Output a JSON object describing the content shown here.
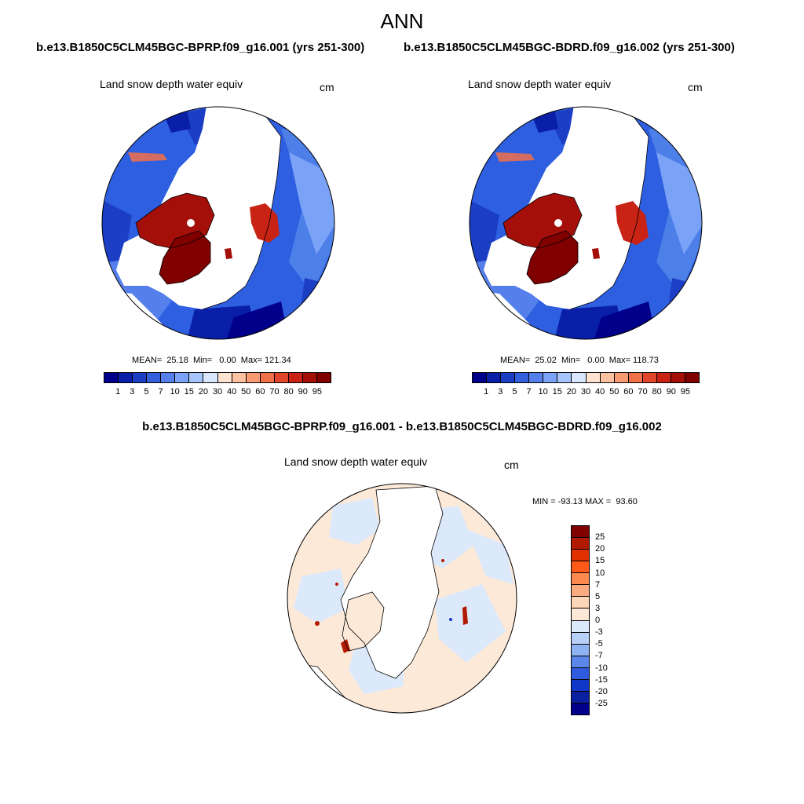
{
  "title": "ANN",
  "panels": [
    {
      "run_title": "b.e13.B1850C5CLM45BGC-BPRP.f09_g16.001 (yrs 251-300)",
      "variable": "Land snow depth water equiv",
      "units": "cm",
      "stats": "MEAN=  25.18  Min=   0.00  Max= 121.34"
    },
    {
      "run_title": "b.e13.B1850C5CLM45BGC-BDRD.f09_g16.002 (yrs 251-300)",
      "variable": "Land snow depth water equiv",
      "units": "cm",
      "stats": "MEAN=  25.02  Min=   0.00  Max= 118.73"
    }
  ],
  "colorbar_abs": {
    "labels": [
      "1",
      "3",
      "5",
      "7",
      "10",
      "15",
      "20",
      "30",
      "40",
      "50",
      "60",
      "70",
      "80",
      "90",
      "95"
    ],
    "colors": [
      "#00008b",
      "#0a1fa8",
      "#1c3ec4",
      "#3560dc",
      "#5580ec",
      "#7aa2f6",
      "#a7c4fb",
      "#d9e6fd",
      "#fde3d0",
      "#fbc1a0",
      "#f89b72",
      "#f0704a",
      "#e1462a",
      "#c82314",
      "#a50f0a",
      "#800000"
    ]
  },
  "diff_panel": {
    "title": "b.e13.B1850C5CLM45BGC-BPRP.f09_g16.001 - b.e13.B1850C5CLM45BGC-BDRD.f09_g16.002",
    "variable": "Land snow depth water equiv",
    "units": "cm",
    "minmax": "MIN = -93.13 MAX =  93.60"
  },
  "colorbar_diff": {
    "labels": [
      "25",
      "20",
      "15",
      "10",
      "7",
      "5",
      "3",
      "0",
      "-3",
      "-5",
      "-7",
      "-10",
      "-15",
      "-20",
      "-25"
    ],
    "colors": [
      "#800000",
      "#b01a00",
      "#e03000",
      "#ff5a1a",
      "#ff8a50",
      "#fbab80",
      "#fdd6b8",
      "#fde9d8",
      "#dce9fb",
      "#b7d0f8",
      "#8fb2f2",
      "#5c86ea",
      "#2e5be0",
      "#1038c8",
      "#0a20a0",
      "#00008b"
    ]
  }
}
